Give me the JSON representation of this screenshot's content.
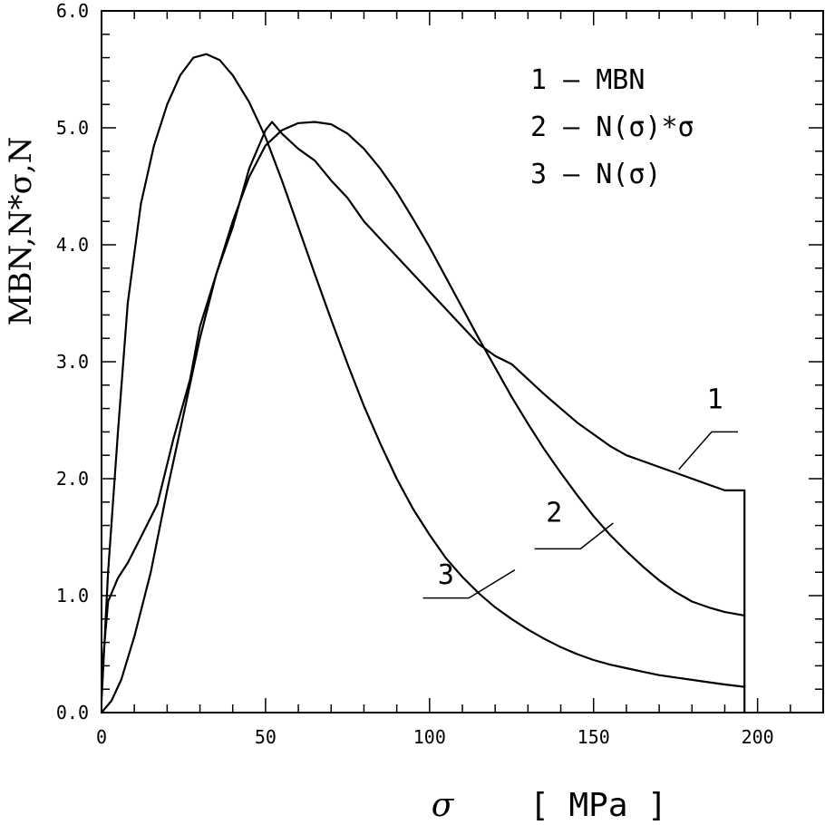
{
  "chart_data": {
    "type": "line",
    "xlabel": "σ",
    "xunit": "[ MPa ]",
    "ylabel": "MBN,N*σ,N",
    "xlim": [
      0,
      220
    ],
    "ylim": [
      0,
      6
    ],
    "x_ticks": [
      {
        "value": 0,
        "label": "0"
      },
      {
        "value": 50,
        "label": "50"
      },
      {
        "value": 100,
        "label": "100"
      },
      {
        "value": 150,
        "label": "150"
      },
      {
        "value": 200,
        "label": "200"
      }
    ],
    "y_ticks": [
      {
        "value": 0,
        "label": "0.0"
      },
      {
        "value": 1,
        "label": "1.0"
      },
      {
        "value": 2,
        "label": "2.0"
      },
      {
        "value": 3,
        "label": "3.0"
      },
      {
        "value": 4,
        "label": "4.0"
      },
      {
        "value": 5,
        "label": "5.0"
      },
      {
        "value": 6,
        "label": "6.0"
      }
    ],
    "legend": [
      {
        "number": "1",
        "text": "1 – MBN"
      },
      {
        "number": "2",
        "text": "2 – N(σ)*σ"
      },
      {
        "number": "3",
        "text": "3 – N(σ)"
      }
    ],
    "legend_position": "top-right",
    "series": [
      {
        "name": "MBN",
        "label": "1",
        "x": [
          0,
          2,
          5,
          8,
          12,
          17,
          22,
          27,
          30,
          35,
          40,
          45,
          50,
          52,
          55,
          60,
          65,
          70,
          75,
          80,
          85,
          90,
          95,
          100,
          105,
          110,
          115,
          120,
          125,
          130,
          135,
          140,
          145,
          150,
          155,
          160,
          165,
          170,
          175,
          180,
          185,
          190,
          196,
          196
        ],
        "y": [
          0.3,
          0.95,
          1.15,
          1.28,
          1.5,
          1.78,
          2.35,
          2.85,
          3.3,
          3.75,
          4.15,
          4.65,
          4.98,
          5.05,
          4.95,
          4.82,
          4.72,
          4.55,
          4.4,
          4.2,
          4.05,
          3.9,
          3.75,
          3.6,
          3.45,
          3.3,
          3.15,
          3.05,
          2.98,
          2.85,
          2.72,
          2.6,
          2.48,
          2.38,
          2.28,
          2.2,
          2.15,
          2.1,
          2.05,
          2.0,
          1.95,
          1.9,
          1.9,
          0
        ]
      },
      {
        "name": "N(σ)*σ",
        "label": "2",
        "x": [
          0,
          3,
          6,
          10,
          15,
          20,
          25,
          30,
          35,
          40,
          45,
          50,
          55,
          60,
          65,
          70,
          75,
          80,
          85,
          90,
          95,
          100,
          105,
          110,
          115,
          120,
          125,
          130,
          135,
          140,
          145,
          150,
          155,
          160,
          165,
          170,
          175,
          180,
          185,
          190,
          196
        ],
        "y": [
          0,
          0.1,
          0.28,
          0.65,
          1.2,
          1.9,
          2.55,
          3.2,
          3.75,
          4.2,
          4.58,
          4.85,
          4.98,
          5.04,
          5.05,
          5.03,
          4.95,
          4.82,
          4.65,
          4.45,
          4.22,
          3.98,
          3.72,
          3.46,
          3.2,
          2.95,
          2.7,
          2.47,
          2.25,
          2.05,
          1.86,
          1.68,
          1.52,
          1.38,
          1.25,
          1.13,
          1.03,
          0.95,
          0.9,
          0.86,
          0.83
        ]
      },
      {
        "name": "N(σ)",
        "label": "3",
        "x": [
          0,
          2,
          5,
          8,
          12,
          16,
          20,
          24,
          28,
          32,
          36,
          40,
          45,
          50,
          55,
          60,
          65,
          70,
          75,
          80,
          85,
          90,
          95,
          100,
          105,
          110,
          115,
          120,
          125,
          130,
          135,
          140,
          145,
          150,
          155,
          160,
          165,
          170,
          175,
          180,
          185,
          190,
          196
        ],
        "y": [
          0.1,
          1.2,
          2.4,
          3.5,
          4.35,
          4.85,
          5.2,
          5.45,
          5.6,
          5.63,
          5.58,
          5.45,
          5.22,
          4.92,
          4.55,
          4.15,
          3.75,
          3.36,
          2.98,
          2.62,
          2.3,
          2.0,
          1.74,
          1.52,
          1.32,
          1.16,
          1.02,
          0.9,
          0.8,
          0.71,
          0.63,
          0.56,
          0.5,
          0.45,
          0.41,
          0.38,
          0.35,
          0.32,
          0.3,
          0.28,
          0.26,
          0.24,
          0.22
        ]
      }
    ],
    "annotations": [
      {
        "label": "1",
        "points": [
          [
            176,
            2.08
          ],
          [
            186,
            2.4
          ],
          [
            194,
            2.4
          ]
        ],
        "text_at": [
          187,
          2.6
        ]
      },
      {
        "label": "2",
        "points": [
          [
            156,
            1.62
          ],
          [
            146,
            1.4
          ],
          [
            132,
            1.4
          ]
        ],
        "text_at": [
          138,
          1.63
        ]
      },
      {
        "label": "3",
        "points": [
          [
            126,
            1.22
          ],
          [
            112,
            0.98
          ],
          [
            98,
            0.98
          ]
        ],
        "text_at": [
          105,
          1.1
        ]
      }
    ]
  }
}
